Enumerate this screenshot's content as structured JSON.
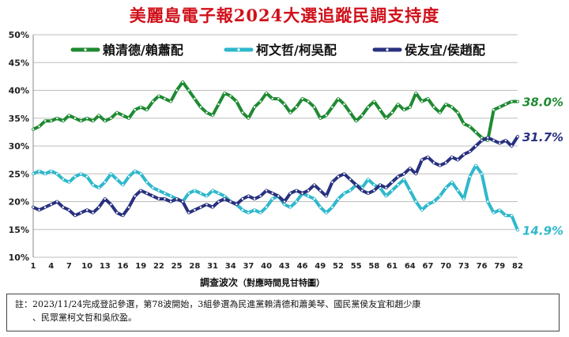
{
  "chart_data": {
    "type": "line",
    "title": "美麗島電子報2024大選追蹤民調支持度",
    "xlabel": "調查波次",
    "xlabel_note": "（對應時間見甘特圖）",
    "ylabel": "",
    "ylim": [
      10,
      50
    ],
    "yticks": [
      "10%",
      "15%",
      "20%",
      "25%",
      "30%",
      "35%",
      "40%",
      "45%",
      "50%"
    ],
    "x_tick_values": [
      1,
      4,
      7,
      10,
      13,
      16,
      19,
      22,
      25,
      28,
      31,
      34,
      37,
      40,
      43,
      46,
      49,
      52,
      55,
      58,
      61,
      64,
      67,
      70,
      73,
      76,
      79,
      82
    ],
    "legend_position": "top",
    "grid": true,
    "series": [
      {
        "name": "賴清德/賴蕭配",
        "color": "#1e8a32",
        "end_label": "38.0%",
        "values": [
          33.0,
          33.5,
          34.5,
          34.5,
          35.0,
          34.5,
          35.5,
          35.0,
          34.5,
          35.0,
          34.5,
          35.5,
          34.5,
          35.0,
          36.0,
          35.5,
          35.0,
          36.5,
          37.0,
          36.5,
          38.0,
          39.0,
          38.5,
          38.0,
          40.0,
          41.5,
          40.0,
          38.5,
          37.0,
          36.0,
          35.5,
          37.5,
          39.5,
          39.0,
          38.0,
          36.0,
          35.0,
          37.0,
          38.0,
          39.5,
          38.5,
          38.5,
          37.5,
          36.0,
          37.0,
          38.5,
          38.0,
          37.0,
          35.0,
          35.5,
          37.0,
          38.5,
          37.5,
          36.0,
          34.5,
          35.5,
          37.0,
          38.0,
          36.5,
          35.0,
          36.0,
          37.5,
          36.5,
          37.0,
          39.5,
          38.0,
          38.5,
          37.0,
          36.0,
          37.5,
          37.0,
          36.0,
          34.0,
          33.5,
          32.5,
          31.5,
          31.0,
          36.5,
          37.0,
          37.5,
          38.0,
          38.0
        ]
      },
      {
        "name": "柯文哲/柯吳配",
        "color": "#2eb8cc",
        "end_label": "14.9%",
        "values": [
          25.0,
          25.5,
          25.0,
          25.5,
          25.0,
          24.0,
          23.5,
          24.5,
          25.0,
          24.5,
          23.0,
          22.5,
          23.5,
          25.0,
          24.0,
          23.0,
          24.5,
          25.5,
          25.0,
          23.5,
          22.5,
          22.0,
          21.5,
          21.0,
          20.5,
          20.0,
          21.5,
          22.0,
          21.5,
          21.0,
          22.0,
          21.5,
          21.0,
          20.0,
          19.5,
          18.5,
          18.0,
          18.5,
          18.0,
          19.0,
          20.5,
          21.0,
          19.5,
          19.0,
          20.0,
          21.5,
          21.0,
          20.5,
          19.0,
          18.0,
          19.0,
          20.5,
          21.5,
          22.0,
          23.0,
          22.5,
          24.0,
          23.0,
          22.5,
          21.0,
          22.0,
          23.0,
          24.0,
          22.0,
          20.0,
          18.5,
          19.5,
          20.0,
          21.0,
          22.5,
          23.5,
          22.0,
          20.5,
          24.5,
          26.5,
          25.0,
          20.0,
          18.0,
          18.5,
          17.5,
          17.5,
          14.9
        ]
      },
      {
        "name": "侯友宜/侯趙配",
        "color": "#28317e",
        "end_label": "31.7%",
        "values": [
          19.0,
          18.5,
          19.0,
          19.5,
          20.0,
          19.0,
          18.5,
          17.5,
          18.0,
          18.5,
          18.0,
          19.0,
          20.5,
          19.5,
          18.0,
          17.5,
          19.0,
          21.0,
          22.0,
          21.5,
          21.0,
          20.5,
          20.5,
          20.0,
          20.5,
          20.0,
          18.0,
          18.5,
          19.0,
          19.5,
          19.0,
          20.0,
          20.5,
          20.0,
          19.5,
          20.5,
          21.0,
          20.5,
          21.0,
          22.0,
          21.5,
          21.0,
          20.0,
          21.5,
          22.0,
          21.5,
          22.0,
          23.0,
          22.0,
          21.0,
          23.5,
          24.5,
          25.0,
          24.0,
          23.0,
          22.0,
          21.5,
          22.0,
          23.0,
          22.5,
          23.5,
          24.5,
          25.0,
          26.0,
          25.0,
          27.5,
          28.0,
          27.0,
          26.5,
          27.0,
          28.0,
          27.5,
          28.5,
          29.0,
          30.0,
          31.0,
          31.5,
          31.0,
          30.5,
          31.0,
          30.0,
          31.7
        ]
      }
    ]
  },
  "note": {
    "line1": "註：2023/11/24完成登記參選，第78波開始，3組參選為民進黨賴清德和蕭美琴、國民黨侯友宜和趙少康",
    "line2": "、民眾黨柯文哲和吳欣盈。"
  }
}
